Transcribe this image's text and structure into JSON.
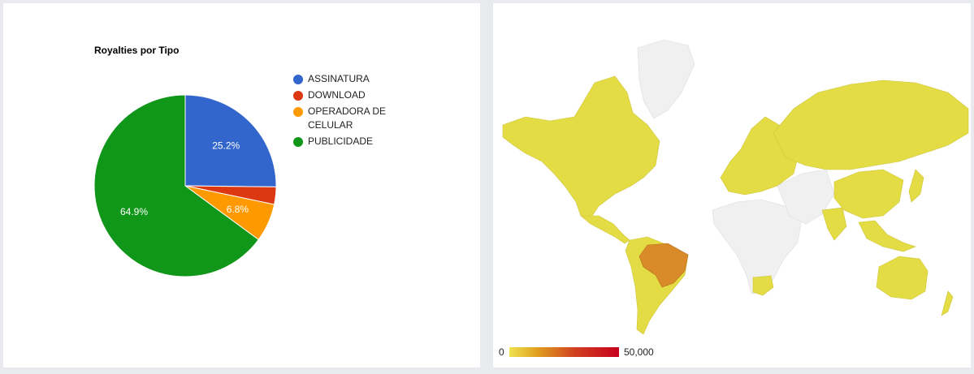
{
  "chart_data": [
    {
      "type": "pie",
      "title": "Royalties por Tipo",
      "slices": [
        {
          "label": "ASSINATURA",
          "value": 25.2,
          "color": "#3366cc",
          "label_text": "25.2%"
        },
        {
          "label": "DOWNLOAD",
          "value": 3.1,
          "color": "#dc3912",
          "label_text": ""
        },
        {
          "label": "OPERADORA DE CELULAR",
          "value": 6.8,
          "color": "#ff9900",
          "label_text": "6.8%"
        },
        {
          "label": "PUBLICIDADE",
          "value": 64.9,
          "color": "#109618",
          "label_text": "64.9%"
        }
      ],
      "legend_position": "right"
    },
    {
      "type": "heatmap",
      "subtype": "geo-choropleth",
      "region": "world",
      "color_scale": {
        "min": "0",
        "max": "50,000",
        "min_color": "#efe350",
        "max_color": "#c8001e",
        "no_data_color": "#f0f0f0"
      },
      "highlighted": [
        {
          "country": "Brazil",
          "color": "#d98a2a"
        }
      ],
      "low_value_color": "#e4dc45"
    }
  ]
}
